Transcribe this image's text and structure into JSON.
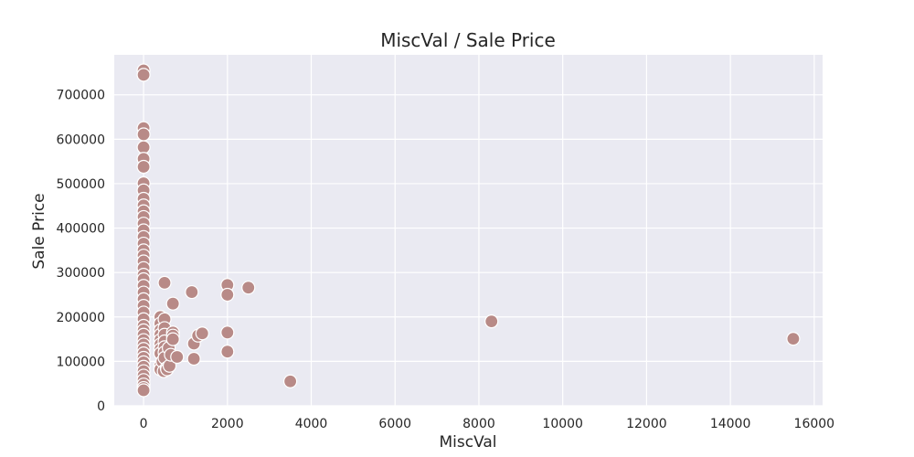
{
  "chart_data": {
    "type": "scatter",
    "title": "MiscVal / Sale Price",
    "xlabel": "MiscVal",
    "ylabel": "Sale Price",
    "xlim": [
      -700,
      16200
    ],
    "ylim": [
      0,
      790000
    ],
    "xticks": [
      0,
      2000,
      4000,
      6000,
      8000,
      10000,
      12000,
      14000,
      16000
    ],
    "yticks": [
      0,
      100000,
      200000,
      300000,
      400000,
      500000,
      600000,
      700000
    ],
    "grid": true,
    "background_color": "#eaeaf2",
    "marker_color": "#b88a87",
    "points": [
      {
        "x": 0,
        "y": 755000
      },
      {
        "x": 0,
        "y": 745000
      },
      {
        "x": 0,
        "y": 625000
      },
      {
        "x": 0,
        "y": 611000
      },
      {
        "x": 0,
        "y": 582000
      },
      {
        "x": 0,
        "y": 556000
      },
      {
        "x": 0,
        "y": 538000
      },
      {
        "x": 0,
        "y": 501000
      },
      {
        "x": 0,
        "y": 485000
      },
      {
        "x": 0,
        "y": 466000
      },
      {
        "x": 0,
        "y": 451000
      },
      {
        "x": 0,
        "y": 438000
      },
      {
        "x": 0,
        "y": 425000
      },
      {
        "x": 0,
        "y": 410000
      },
      {
        "x": 0,
        "y": 395000
      },
      {
        "x": 0,
        "y": 380000
      },
      {
        "x": 0,
        "y": 365000
      },
      {
        "x": 0,
        "y": 350000
      },
      {
        "x": 0,
        "y": 338000
      },
      {
        "x": 0,
        "y": 325000
      },
      {
        "x": 0,
        "y": 310000
      },
      {
        "x": 0,
        "y": 295000
      },
      {
        "x": 0,
        "y": 285000
      },
      {
        "x": 0,
        "y": 270000
      },
      {
        "x": 0,
        "y": 255000
      },
      {
        "x": 0,
        "y": 240000
      },
      {
        "x": 0,
        "y": 225000
      },
      {
        "x": 0,
        "y": 210000
      },
      {
        "x": 0,
        "y": 195000
      },
      {
        "x": 0,
        "y": 180000
      },
      {
        "x": 0,
        "y": 170000
      },
      {
        "x": 0,
        "y": 160000
      },
      {
        "x": 0,
        "y": 148000
      },
      {
        "x": 0,
        "y": 138000
      },
      {
        "x": 0,
        "y": 128000
      },
      {
        "x": 0,
        "y": 118000
      },
      {
        "x": 0,
        "y": 108000
      },
      {
        "x": 0,
        "y": 98000
      },
      {
        "x": 0,
        "y": 88000
      },
      {
        "x": 0,
        "y": 78000
      },
      {
        "x": 0,
        "y": 68000
      },
      {
        "x": 0,
        "y": 58000
      },
      {
        "x": 0,
        "y": 48000
      },
      {
        "x": 0,
        "y": 40000
      },
      {
        "x": 0,
        "y": 35000
      },
      {
        "x": 400,
        "y": 200000
      },
      {
        "x": 400,
        "y": 185000
      },
      {
        "x": 400,
        "y": 170000
      },
      {
        "x": 400,
        "y": 160000
      },
      {
        "x": 400,
        "y": 148000
      },
      {
        "x": 400,
        "y": 138000
      },
      {
        "x": 400,
        "y": 127000
      },
      {
        "x": 400,
        "y": 118000
      },
      {
        "x": 400,
        "y": 90000
      },
      {
        "x": 400,
        "y": 82000
      },
      {
        "x": 450,
        "y": 100000
      },
      {
        "x": 480,
        "y": 78000
      },
      {
        "x": 500,
        "y": 277000
      },
      {
        "x": 500,
        "y": 195000
      },
      {
        "x": 500,
        "y": 175000
      },
      {
        "x": 500,
        "y": 160000
      },
      {
        "x": 500,
        "y": 145000
      },
      {
        "x": 500,
        "y": 132000
      },
      {
        "x": 500,
        "y": 120000
      },
      {
        "x": 500,
        "y": 108000
      },
      {
        "x": 550,
        "y": 85000
      },
      {
        "x": 560,
        "y": 82000
      },
      {
        "x": 600,
        "y": 130000
      },
      {
        "x": 620,
        "y": 90000
      },
      {
        "x": 650,
        "y": 115000
      },
      {
        "x": 700,
        "y": 230000
      },
      {
        "x": 700,
        "y": 165000
      },
      {
        "x": 700,
        "y": 158000
      },
      {
        "x": 700,
        "y": 150000
      },
      {
        "x": 800,
        "y": 110000
      },
      {
        "x": 1150,
        "y": 256000
      },
      {
        "x": 1200,
        "y": 140000
      },
      {
        "x": 1200,
        "y": 106000
      },
      {
        "x": 1300,
        "y": 158000
      },
      {
        "x": 1400,
        "y": 163000
      },
      {
        "x": 2000,
        "y": 272000
      },
      {
        "x": 2000,
        "y": 250000
      },
      {
        "x": 2000,
        "y": 165000
      },
      {
        "x": 2000,
        "y": 122000
      },
      {
        "x": 2500,
        "y": 266000
      },
      {
        "x": 3500,
        "y": 55000
      },
      {
        "x": 8300,
        "y": 190000
      },
      {
        "x": 15500,
        "y": 151000
      }
    ]
  }
}
